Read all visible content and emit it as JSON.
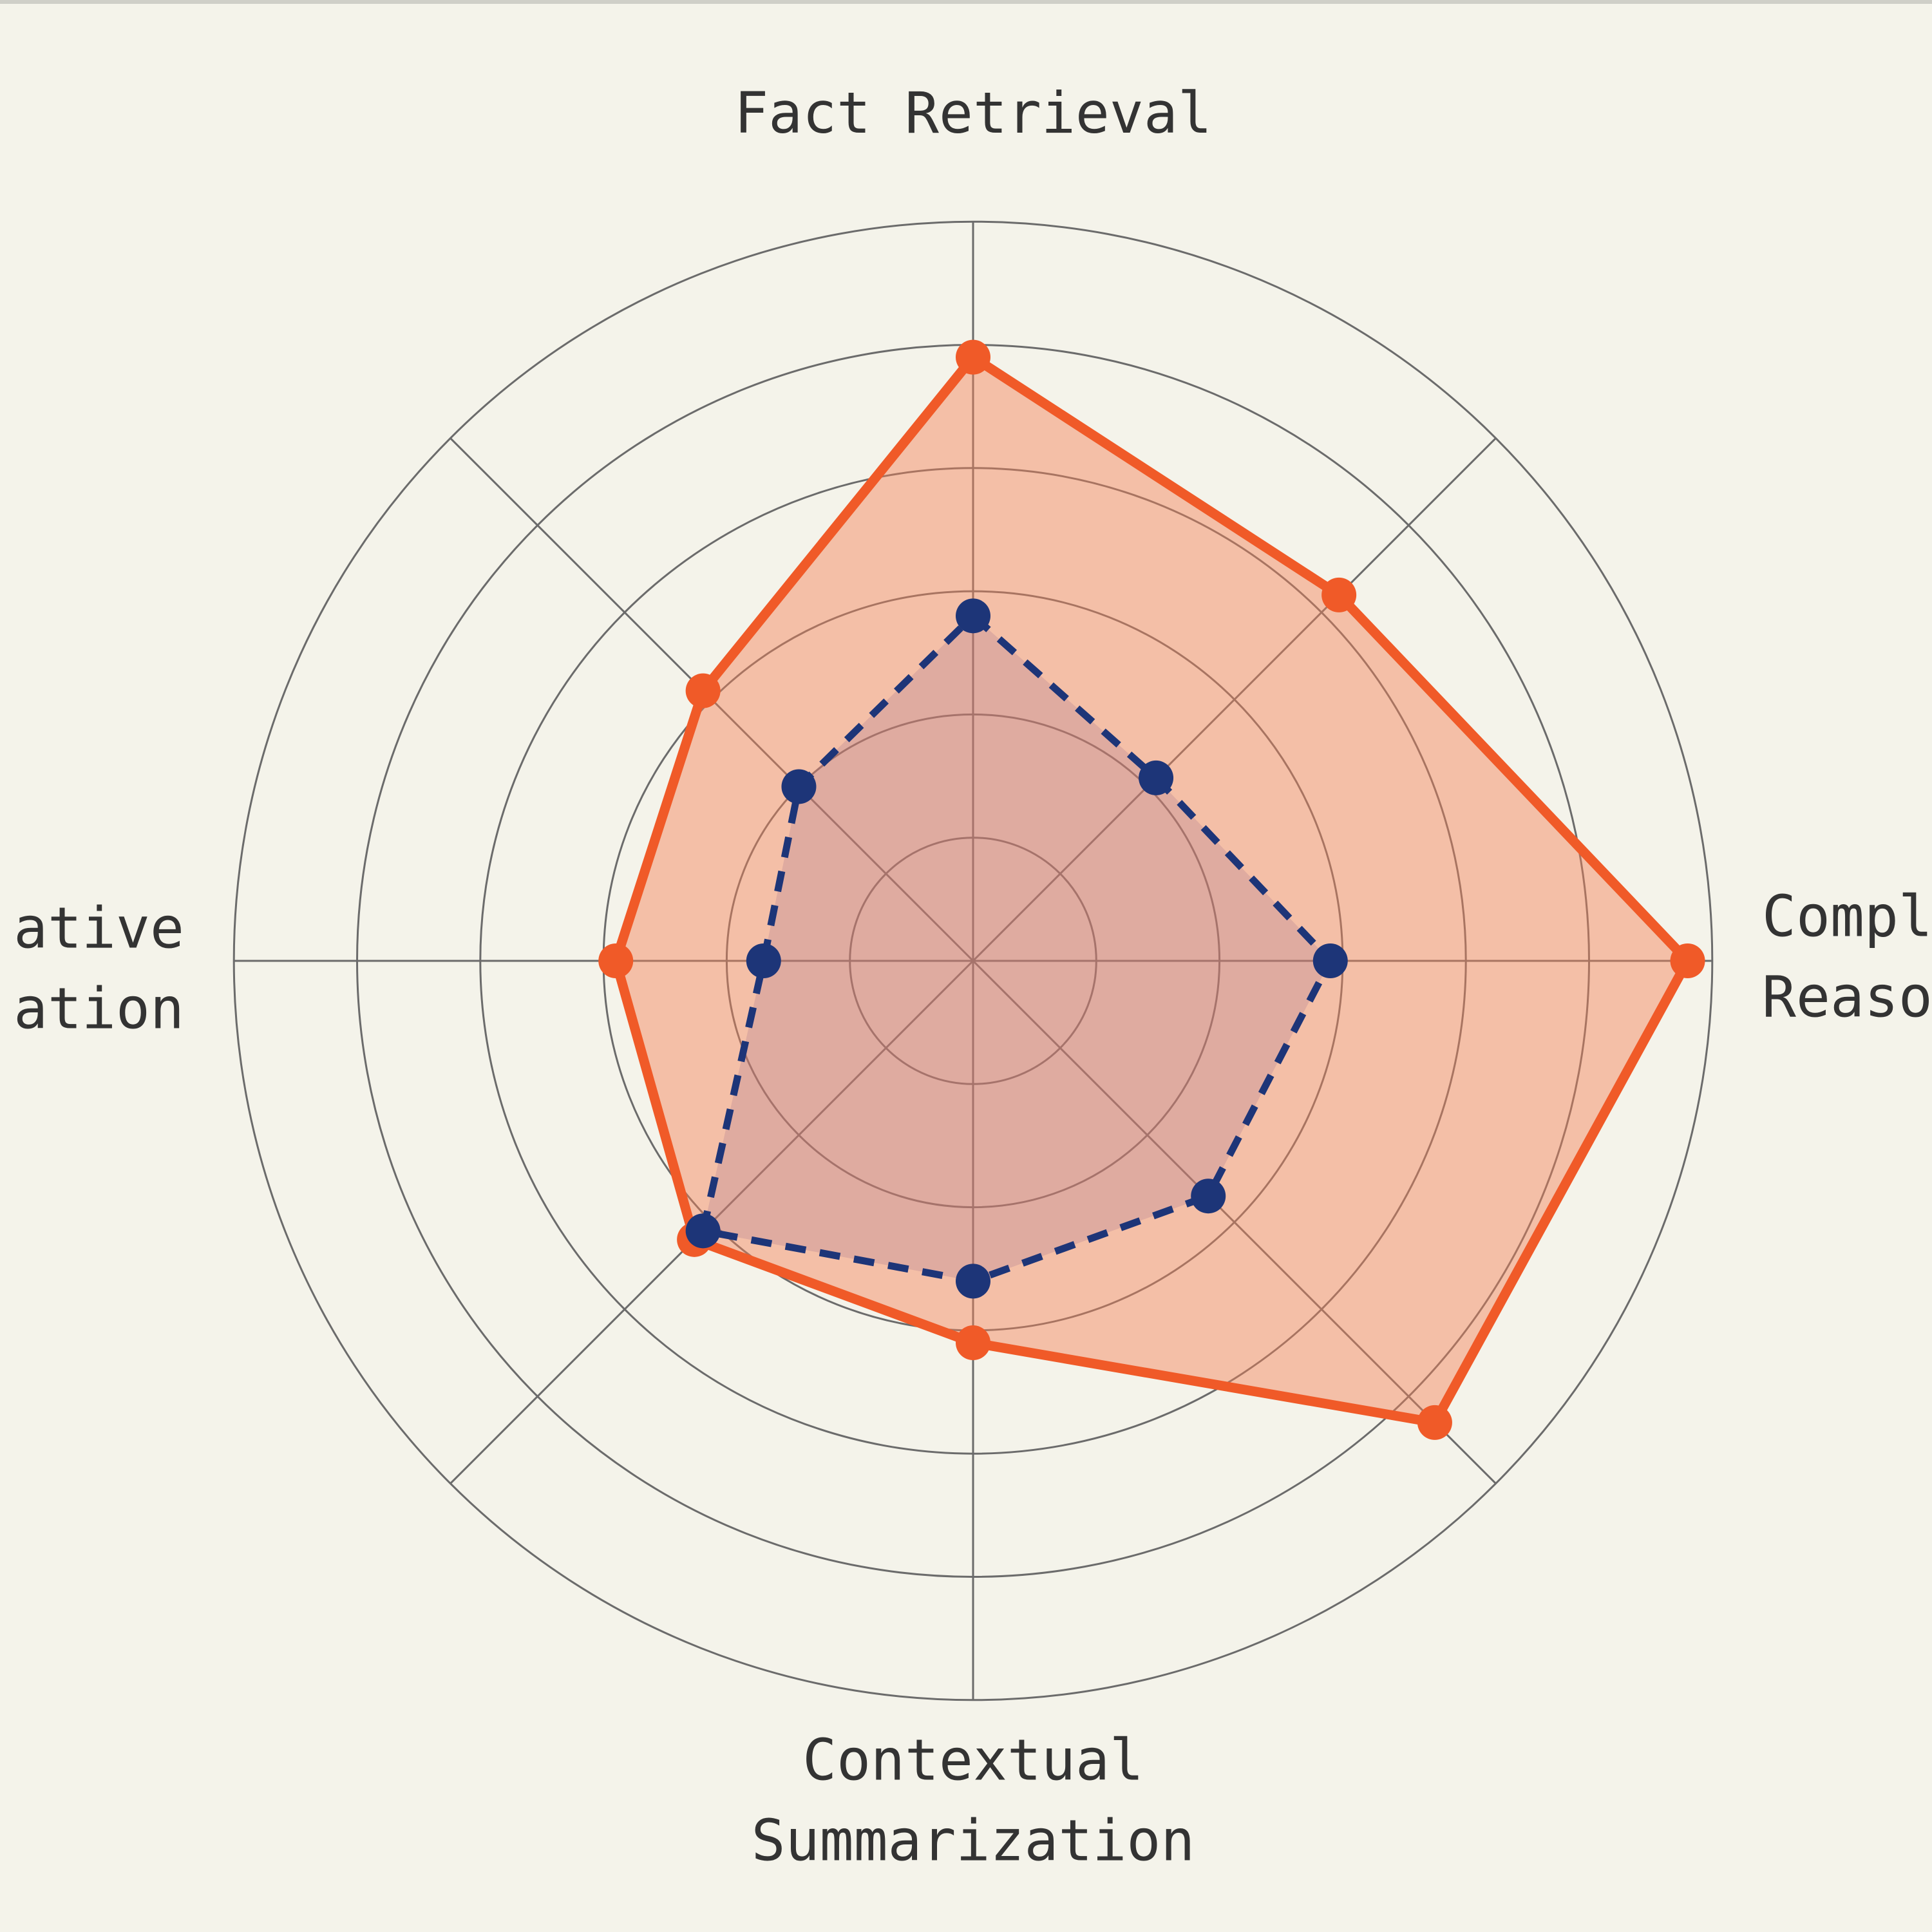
{
  "chart_data": {
    "type": "radar",
    "categories": [
      [
        "Fact Retrieval"
      ],
      null,
      [
        "Compl",
        "Reaso"
      ],
      null,
      [
        "Contextual",
        "Summarization"
      ],
      null,
      [
        "ative",
        "ation"
      ],
      null
    ],
    "rlim": [
      0,
      6
    ],
    "rticks": [
      1,
      2,
      3,
      4,
      5,
      6
    ],
    "grid": true,
    "series": [
      {
        "color": "#f05a28",
        "fill": "rgba(243,128,86,0.45)",
        "dashed": false,
        "values": [
          4.9,
          4.2,
          5.8,
          5.3,
          3.1,
          3.2,
          2.9,
          3.1
        ]
      },
      {
        "color": "#1d3578",
        "fill": "rgba(160,110,140,0.25)",
        "dashed": true,
        "values": [
          2.8,
          2.1,
          2.9,
          2.7,
          2.6,
          3.1,
          1.7,
          2.0
        ]
      }
    ]
  }
}
